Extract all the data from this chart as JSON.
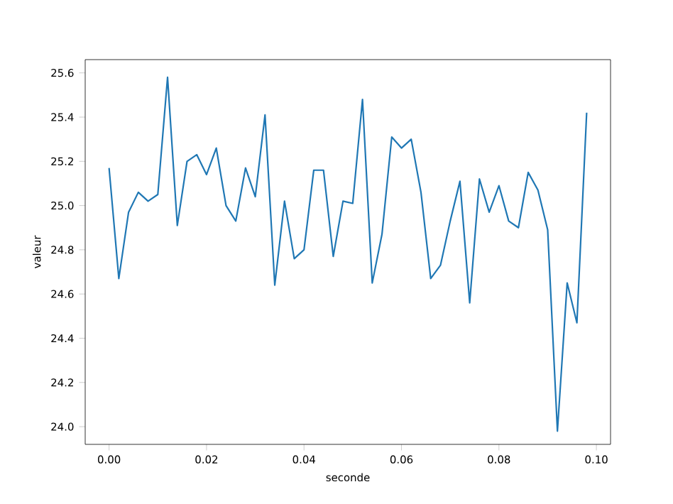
{
  "chart_data": {
    "type": "line",
    "xlabel": "seconde",
    "ylabel": "valeur",
    "color": "#1f77b4",
    "x": [
      0.0,
      0.002,
      0.004,
      0.006,
      0.008,
      0.01,
      0.012,
      0.014,
      0.016,
      0.018,
      0.02,
      0.022,
      0.024,
      0.026,
      0.028,
      0.03,
      0.032,
      0.034,
      0.036,
      0.038,
      0.04,
      0.042,
      0.044,
      0.046,
      0.048,
      0.05,
      0.052,
      0.054,
      0.056,
      0.058,
      0.06,
      0.062,
      0.064,
      0.066,
      0.068,
      0.07,
      0.072,
      0.074,
      0.076,
      0.078,
      0.08,
      0.082,
      0.084,
      0.086,
      0.088,
      0.09,
      0.092,
      0.094,
      0.096,
      0.098
    ],
    "values": [
      25.17,
      24.67,
      24.97,
      25.06,
      25.02,
      25.05,
      25.58,
      24.91,
      25.2,
      25.23,
      25.14,
      25.26,
      25.0,
      24.93,
      25.17,
      25.04,
      25.41,
      24.64,
      25.02,
      24.76,
      24.8,
      25.16,
      25.16,
      24.77,
      25.02,
      25.01,
      25.48,
      24.65,
      24.87,
      25.31,
      25.26,
      25.3,
      25.06,
      24.67,
      24.73,
      24.93,
      25.11,
      24.56,
      25.12,
      24.97,
      25.09,
      24.93,
      24.9,
      25.15,
      25.07,
      24.89,
      23.98,
      24.65,
      24.47,
      25.42
    ],
    "xlim": [
      -0.0049,
      0.1029
    ],
    "ylim": [
      23.92,
      25.66
    ],
    "xticks": [
      {
        "value": 0,
        "label": "0.00"
      },
      {
        "value": 0.02,
        "label": "0.02"
      },
      {
        "value": 0.04,
        "label": "0.04"
      },
      {
        "value": 0.06,
        "label": "0.06"
      },
      {
        "value": 0.08,
        "label": "0.08"
      },
      {
        "value": 0.1,
        "label": "0.10"
      }
    ],
    "yticks": [
      {
        "value": 24.0,
        "label": "24.0"
      },
      {
        "value": 24.2,
        "label": "24.2"
      },
      {
        "value": 24.4,
        "label": "24.4"
      },
      {
        "value": 24.6,
        "label": "24.6"
      },
      {
        "value": 24.8,
        "label": "24.8"
      },
      {
        "value": 25.0,
        "label": "25.0"
      },
      {
        "value": 25.2,
        "label": "25.2"
      },
      {
        "value": 25.4,
        "label": "25.4"
      },
      {
        "value": 25.6,
        "label": "25.6"
      }
    ],
    "grid": false,
    "marker": "none",
    "line_style": "solid"
  }
}
